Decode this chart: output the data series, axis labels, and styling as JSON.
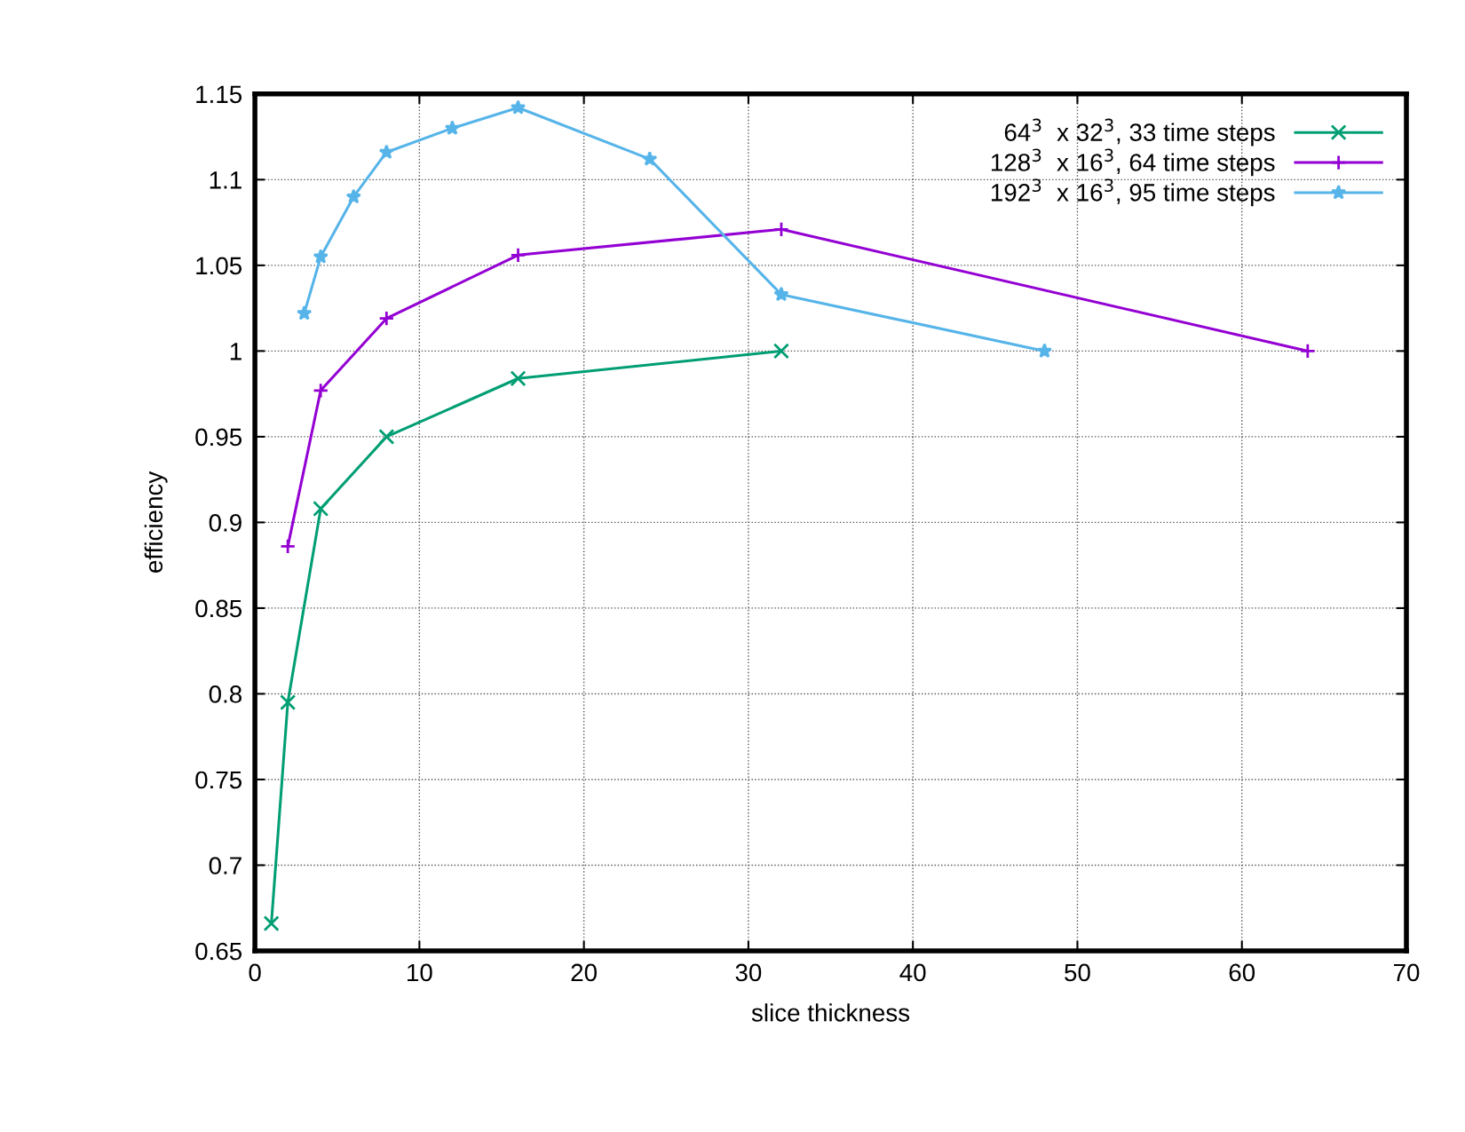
{
  "chart_data": {
    "type": "line",
    "xlabel": "slice thickness",
    "ylabel": "efficiency",
    "xlim": [
      0,
      70
    ],
    "xticks": [
      0,
      10,
      20,
      30,
      40,
      50,
      60,
      70
    ],
    "ylim": [
      0.65,
      1.15
    ],
    "yticks": [
      0.65,
      0.7,
      0.75,
      0.8,
      0.85,
      0.9,
      0.95,
      1,
      1.05,
      1.1,
      1.15
    ],
    "grid": true,
    "legend": "top right",
    "line_style": "solid",
    "series": [
      {
        "name": "64$^{3}$  x 32$^{3}$, 33 time steps",
        "color": "#009e73",
        "marker": "cross",
        "x": [
          1,
          2,
          4,
          8,
          16,
          32
        ],
        "values": [
          0.666,
          0.795,
          0.908,
          0.95,
          0.984,
          1.0
        ]
      },
      {
        "name": "128$^{3}$  x 16$^{3}$, 64 time steps",
        "color": "#9400d3",
        "marker": "plus",
        "x": [
          2,
          4,
          8,
          16,
          32,
          64
        ],
        "values": [
          0.886,
          0.977,
          1.019,
          1.056,
          1.071,
          1.0
        ]
      },
      {
        "name": "192$^{3}$  x 16$^{3}$, 95 time steps",
        "color": "#56b4e9",
        "marker": "star",
        "x": [
          3,
          4,
          6,
          8,
          12,
          16,
          24,
          32,
          48
        ],
        "values": [
          1.022,
          1.055,
          1.09,
          1.116,
          1.13,
          1.142,
          1.112,
          1.033,
          1.0
        ]
      }
    ]
  }
}
